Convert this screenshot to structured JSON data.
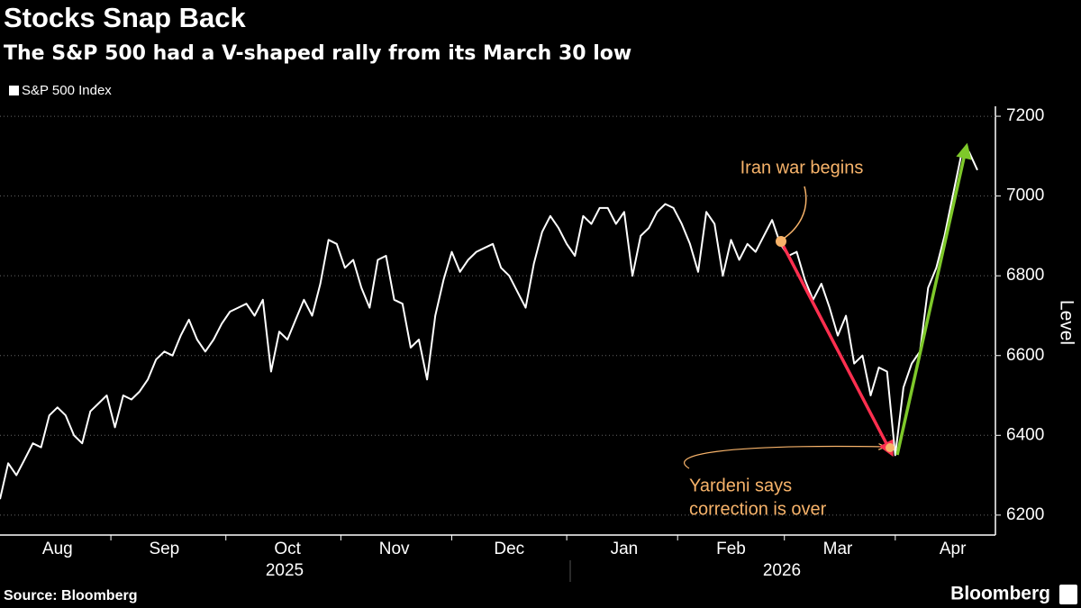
{
  "chart_data": {
    "type": "line",
    "title": "Stocks Snap Back",
    "subtitle": "The S&P 500 had a V-shaped rally from its March 30 low",
    "y_axis_label": "Level",
    "source": "Source: Bloomberg",
    "brand": "Bloomberg",
    "years": [
      "2025",
      "2026"
    ],
    "annotations": [
      {
        "text": "Iran war begins"
      },
      {
        "lines": [
          "Yardeni says",
          "correction is over"
        ]
      }
    ],
    "categories": [
      null,
      null,
      null,
      null,
      null,
      null,
      null,
      "Aug",
      null,
      null,
      null,
      null,
      null,
      null,
      null,
      null,
      null,
      null,
      null,
      null,
      "Sep",
      null,
      null,
      null,
      null,
      null,
      null,
      null,
      null,
      null,
      null,
      null,
      null,
      null,
      null,
      "Oct",
      null,
      null,
      null,
      null,
      null,
      null,
      null,
      null,
      null,
      null,
      null,
      null,
      "Nov",
      null,
      null,
      null,
      null,
      null,
      null,
      null,
      null,
      null,
      null,
      null,
      null,
      null,
      "Dec",
      null,
      null,
      null,
      null,
      null,
      null,
      null,
      null,
      null,
      null,
      null,
      null,
      null,
      "Jan",
      null,
      null,
      null,
      null,
      null,
      null,
      null,
      null,
      null,
      null,
      null,
      null,
      "Feb",
      null,
      null,
      null,
      null,
      null,
      null,
      null,
      null,
      null,
      null,
      null,
      null,
      "Mar",
      null,
      null,
      null,
      null,
      null,
      null,
      null,
      null,
      null,
      null,
      null,
      null,
      null,
      "Apr",
      null,
      null,
      null
    ],
    "series": [
      {
        "name": "S&P 500 Index",
        "color": "#ffffff",
        "values": [
          6240,
          6330,
          6300,
          6340,
          6380,
          6370,
          6450,
          6470,
          6450,
          6400,
          6380,
          6460,
          6480,
          6500,
          6420,
          6500,
          6490,
          6510,
          6540,
          6590,
          6610,
          6600,
          6650,
          6690,
          6640,
          6610,
          6640,
          6680,
          6710,
          6720,
          6730,
          6700,
          6740,
          6560,
          6660,
          6640,
          6690,
          6740,
          6700,
          6780,
          6890,
          6880,
          6820,
          6840,
          6770,
          6720,
          6840,
          6850,
          6740,
          6730,
          6620,
          6640,
          6540,
          6700,
          6790,
          6860,
          6810,
          6840,
          6860,
          6870,
          6880,
          6820,
          6800,
          6760,
          6720,
          6830,
          6910,
          6950,
          6920,
          6880,
          6850,
          6950,
          6930,
          6970,
          6970,
          6930,
          6960,
          6800,
          6900,
          6920,
          6960,
          6980,
          6970,
          6930,
          6880,
          6810,
          6960,
          6930,
          6800,
          6890,
          6840,
          6880,
          6860,
          6900,
          6940,
          6880,
          6850,
          6860,
          6790,
          6740,
          6780,
          6720,
          6650,
          6700,
          6580,
          6600,
          6500,
          6570,
          6560,
          6350,
          6520,
          6580,
          6610,
          6770,
          6820,
          6900,
          7000,
          7100,
          7110,
          7065
        ]
      }
    ],
    "ylim": [
      6150,
      7225
    ],
    "yticks": [
      6200,
      6400,
      6600,
      6800,
      7000,
      7200
    ],
    "grid": true
  }
}
